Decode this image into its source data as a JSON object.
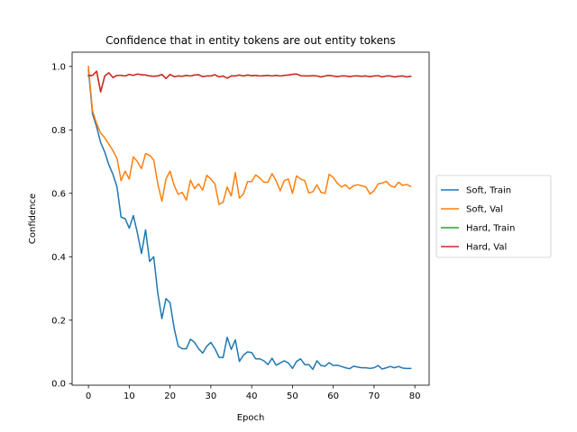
{
  "chart_data": {
    "type": "line",
    "title": "Confidence that in entity tokens are out entity tokens",
    "xlabel": "Epoch",
    "ylabel": "Confidence",
    "xlim": [
      -4,
      83.5
    ],
    "ylim": [
      -0.005,
      1.045
    ],
    "xticks": [
      "0",
      "10",
      "20",
      "30",
      "40",
      "50",
      "60",
      "70",
      "80"
    ],
    "yticks": [
      "0.0",
      "0.2",
      "0.4",
      "0.6",
      "0.8",
      "1.0"
    ],
    "grid": false,
    "legend_position": "outside-right",
    "x": [
      0,
      1,
      2,
      3,
      4,
      5,
      6,
      7,
      8,
      9,
      10,
      11,
      12,
      13,
      14,
      15,
      16,
      17,
      18,
      19,
      20,
      21,
      22,
      23,
      24,
      25,
      26,
      27,
      28,
      29,
      30,
      31,
      32,
      33,
      34,
      35,
      36,
      37,
      38,
      39,
      40,
      41,
      42,
      43,
      44,
      45,
      46,
      47,
      48,
      49,
      50,
      51,
      52,
      53,
      54,
      55,
      56,
      57,
      58,
      59,
      60,
      61,
      62,
      63,
      64,
      65,
      66,
      67,
      68,
      69,
      70,
      71,
      72,
      73,
      74,
      75,
      76,
      77,
      78,
      79
    ],
    "series": [
      {
        "name": "Soft, Train",
        "color": "#1f77b4",
        "values": [
          0.99,
          0.85,
          0.81,
          0.76,
          0.73,
          0.69,
          0.66,
          0.62,
          0.525,
          0.52,
          0.49,
          0.53,
          0.475,
          0.41,
          0.485,
          0.385,
          0.4,
          0.285,
          0.205,
          0.268,
          0.255,
          0.175,
          0.118,
          0.11,
          0.11,
          0.14,
          0.13,
          0.11,
          0.096,
          0.118,
          0.13,
          0.11,
          0.083,
          0.082,
          0.146,
          0.108,
          0.138,
          0.07,
          0.09,
          0.1,
          0.098,
          0.078,
          0.078,
          0.072,
          0.06,
          0.08,
          0.058,
          0.065,
          0.072,
          0.065,
          0.048,
          0.07,
          0.078,
          0.06,
          0.06,
          0.045,
          0.072,
          0.057,
          0.055,
          0.066,
          0.057,
          0.058,
          0.054,
          0.05,
          0.047,
          0.055,
          0.052,
          0.05,
          0.05,
          0.048,
          0.05,
          0.057,
          0.046,
          0.05,
          0.054,
          0.05,
          0.054,
          0.049,
          0.048,
          0.048
        ]
      },
      {
        "name": "Soft, Val",
        "color": "#ff7f0e",
        "values": [
          1.0,
          0.86,
          0.82,
          0.79,
          0.775,
          0.755,
          0.735,
          0.71,
          0.64,
          0.67,
          0.645,
          0.715,
          0.7,
          0.678,
          0.725,
          0.72,
          0.705,
          0.63,
          0.575,
          0.645,
          0.67,
          0.625,
          0.597,
          0.603,
          0.578,
          0.642,
          0.615,
          0.63,
          0.61,
          0.657,
          0.645,
          0.63,
          0.565,
          0.572,
          0.62,
          0.592,
          0.665,
          0.585,
          0.598,
          0.637,
          0.637,
          0.658,
          0.648,
          0.635,
          0.635,
          0.662,
          0.64,
          0.608,
          0.64,
          0.645,
          0.6,
          0.655,
          0.645,
          0.64,
          0.601,
          0.605,
          0.627,
          0.603,
          0.6,
          0.66,
          0.65,
          0.632,
          0.62,
          0.627,
          0.614,
          0.624,
          0.627,
          0.624,
          0.62,
          0.598,
          0.608,
          0.63,
          0.632,
          0.638,
          0.624,
          0.619,
          0.635,
          0.625,
          0.628,
          0.622
        ]
      },
      {
        "name": "Hard, Train",
        "color": "#2ca02c",
        "values": [
          0.97,
          0.972,
          0.985,
          0.92,
          0.97,
          0.98,
          0.965,
          0.972,
          0.972,
          0.97,
          0.975,
          0.972,
          0.976,
          0.974,
          0.973,
          0.97,
          0.969,
          0.97,
          0.975,
          0.962,
          0.975,
          0.968,
          0.97,
          0.969,
          0.972,
          0.97,
          0.973,
          0.974,
          0.968,
          0.97,
          0.97,
          0.974,
          0.967,
          0.97,
          0.963,
          0.97,
          0.97,
          0.973,
          0.97,
          0.973,
          0.971,
          0.972,
          0.97,
          0.971,
          0.972,
          0.97,
          0.972,
          0.97,
          0.972,
          0.973,
          0.975,
          0.976,
          0.971,
          0.97,
          0.97,
          0.971,
          0.97,
          0.967,
          0.97,
          0.972,
          0.97,
          0.968,
          0.97,
          0.97,
          0.968,
          0.97,
          0.97,
          0.969,
          0.97,
          0.968,
          0.97,
          0.971,
          0.967,
          0.97,
          0.97,
          0.967,
          0.969,
          0.97,
          0.967,
          0.969
        ]
      },
      {
        "name": "Hard, Val",
        "color": "#d62728",
        "values": [
          0.972,
          0.972,
          0.985,
          0.92,
          0.97,
          0.98,
          0.965,
          0.972,
          0.972,
          0.97,
          0.975,
          0.972,
          0.976,
          0.974,
          0.973,
          0.97,
          0.969,
          0.97,
          0.975,
          0.962,
          0.975,
          0.968,
          0.97,
          0.969,
          0.972,
          0.97,
          0.973,
          0.974,
          0.968,
          0.97,
          0.97,
          0.974,
          0.967,
          0.97,
          0.963,
          0.97,
          0.97,
          0.973,
          0.97,
          0.973,
          0.971,
          0.972,
          0.97,
          0.971,
          0.972,
          0.97,
          0.972,
          0.97,
          0.972,
          0.973,
          0.975,
          0.976,
          0.971,
          0.97,
          0.97,
          0.971,
          0.97,
          0.967,
          0.97,
          0.972,
          0.97,
          0.968,
          0.97,
          0.97,
          0.968,
          0.97,
          0.97,
          0.969,
          0.97,
          0.968,
          0.97,
          0.971,
          0.967,
          0.97,
          0.97,
          0.967,
          0.969,
          0.97,
          0.967,
          0.969
        ]
      }
    ]
  }
}
